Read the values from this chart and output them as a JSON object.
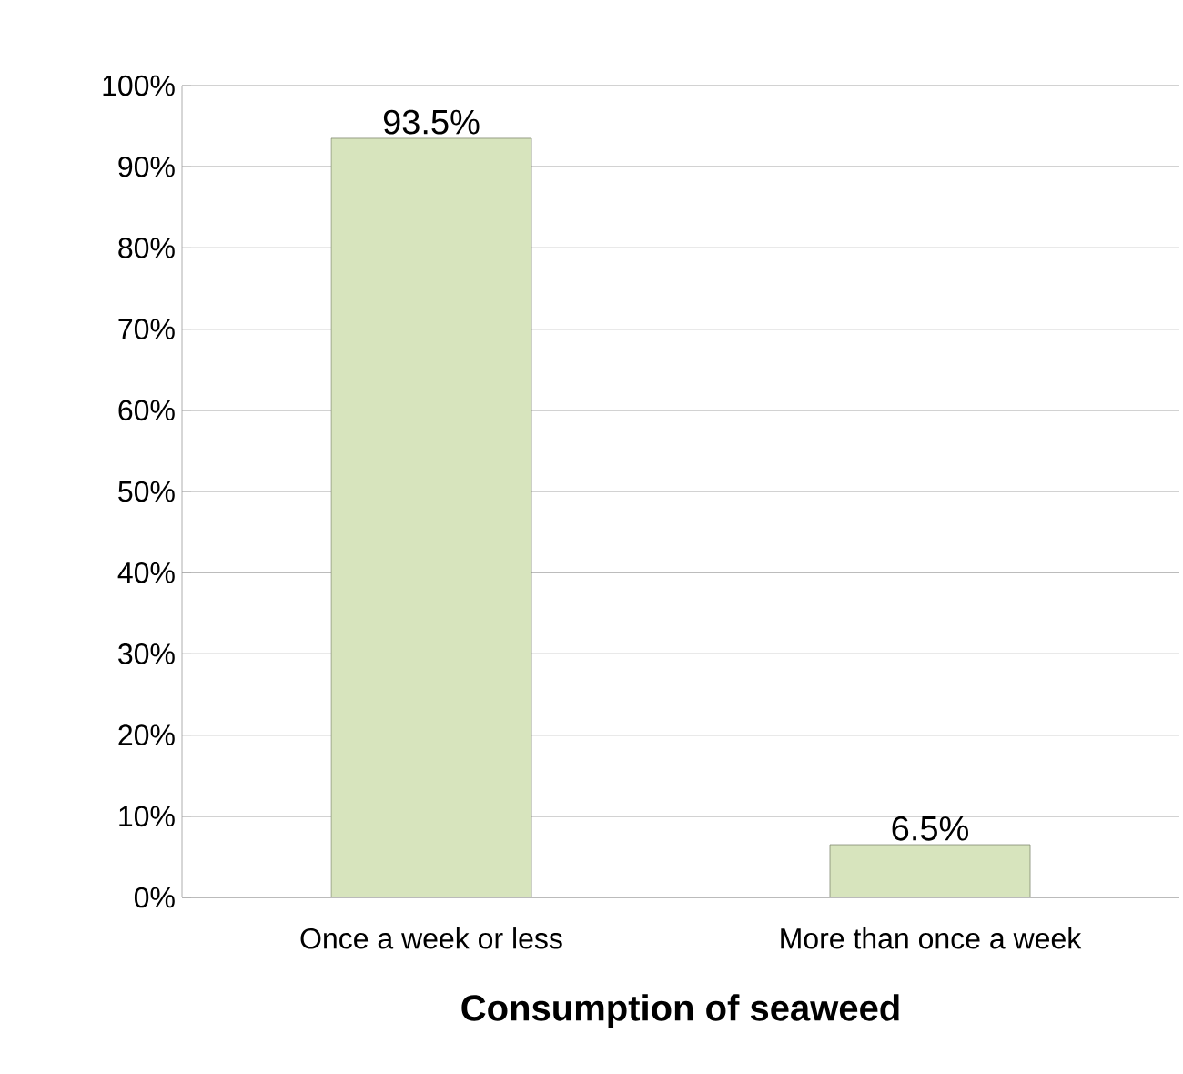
{
  "chart_data": {
    "type": "bar",
    "xlabel": "Consumption of seaweed",
    "categories": [
      "Once a week or less",
      "More than once a week"
    ],
    "values": [
      93.5,
      6.5
    ],
    "value_labels": [
      "93.5%",
      "6.5%"
    ],
    "color": "#d7e4bd",
    "ylim": [
      0,
      100
    ],
    "yticks": [
      {
        "value": 0,
        "label": "0%"
      },
      {
        "value": 10,
        "label": "10%"
      },
      {
        "value": 20,
        "label": "20%"
      },
      {
        "value": 30,
        "label": "30%"
      },
      {
        "value": 40,
        "label": "40%"
      },
      {
        "value": 50,
        "label": "50%"
      },
      {
        "value": 60,
        "label": "60%"
      },
      {
        "value": 70,
        "label": "70%"
      },
      {
        "value": 80,
        "label": "80%"
      },
      {
        "value": 90,
        "label": "90%"
      },
      {
        "value": 100,
        "label": "100%"
      }
    ],
    "grid": "y"
  }
}
